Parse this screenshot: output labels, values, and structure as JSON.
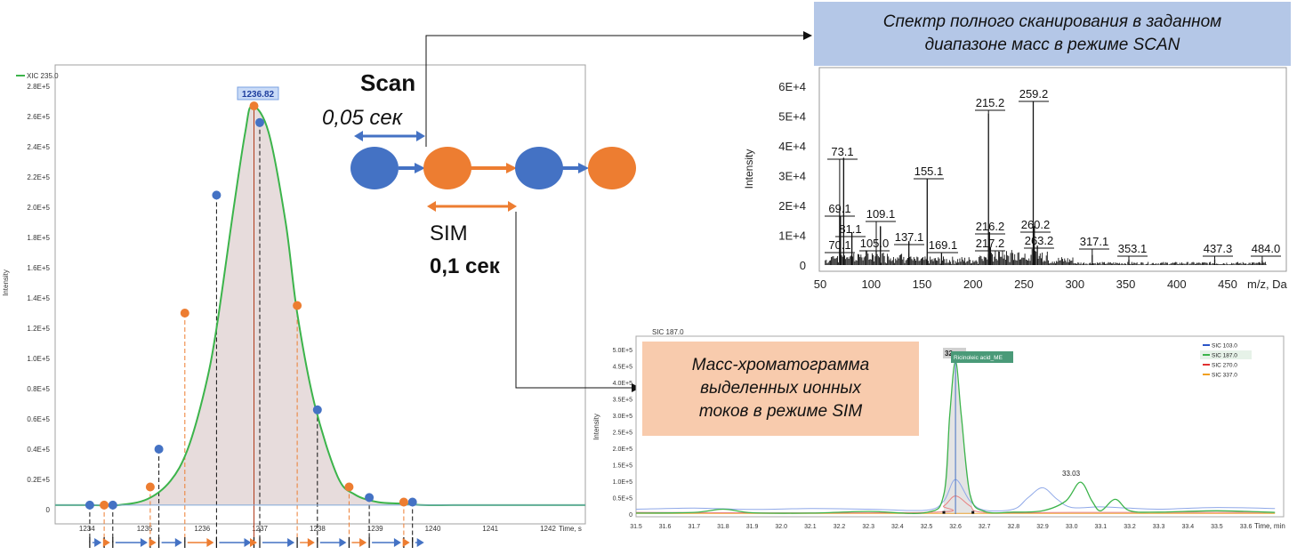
{
  "colors": {
    "blue": "#4472c4",
    "orange": "#ed7d31",
    "green": "#3cb44b",
    "peak_fill": "#e7dcdc"
  },
  "icons": [
    "scan-dot-icon",
    "sim-dot-icon",
    "arrow-right-icon"
  ],
  "left_plot": {
    "legend": "XIC 235.0",
    "peak_label": "1236.82",
    "ylabel": "Intensity",
    "xlabel": "Time, s",
    "yticks": [
      "0",
      "0.2E+5",
      "0.4E+5",
      "0.6E+5",
      "0.8E+5",
      "1.0E+5",
      "1.2E+5",
      "1.4E+5",
      "1.6E+5",
      "1.8E+5",
      "2.0E+5",
      "2.2E+5",
      "2.4E+5",
      "2.6E+5",
      "2.8E+5"
    ],
    "xticks": [
      "1234",
      "1235",
      "1236",
      "1237",
      "1238",
      "1239",
      "1240",
      "1241",
      "1242"
    ]
  },
  "scheme": {
    "scan_title": "Scan",
    "scan_time": "0,05 сек",
    "sim_title": "SIM",
    "sim_time": "0,1 сек"
  },
  "scan_spectrum": {
    "caption_line1": "Спектр полного сканирования в заданном",
    "caption_line2": "диапазоне масс в режиме SCAN",
    "ylabel": "Intensity",
    "xlabel": "m/z, Da",
    "yticks": [
      "0",
      "1E+4",
      "2E+4",
      "3E+4",
      "4E+4",
      "5E+4",
      "6E+4"
    ],
    "xticks": [
      "50",
      "100",
      "150",
      "200",
      "250",
      "300",
      "350",
      "400",
      "450"
    ],
    "peak_labels": [
      "73.1",
      "69.1",
      "81.1",
      "70.1",
      "109.1",
      "105.0",
      "137.1",
      "155.1",
      "169.1",
      "215.2",
      "216.2",
      "217.2",
      "259.2",
      "260.2",
      "263.2",
      "317.1",
      "353.1",
      "437.3",
      "484.0"
    ]
  },
  "sim_chromatogram": {
    "caption_line1": "Масс-хроматограмма",
    "caption_line2": "выделенных ионных",
    "caption_line3": "токов в режиме SIM",
    "title": "SIC 187.0",
    "ylabel": "Intensity",
    "xlabel": "Time, min",
    "peak_marker": "32",
    "compound_label": "Ricinoleic acid_ME",
    "peak2_label": "33.03",
    "legend": [
      {
        "name": "SIC 103.0",
        "color": "#2b55c8"
      },
      {
        "name": "SIC 187.0",
        "color": "#3cb44b"
      },
      {
        "name": "SIC 270.0",
        "color": "#e03030"
      },
      {
        "name": "SIC 337.0",
        "color": "#f0a020"
      }
    ],
    "yticks": [
      "0",
      "0.5E+5",
      "1.0E+5",
      "1.5E+5",
      "2.0E+5",
      "2.5E+5",
      "3.0E+5",
      "3.5E+5",
      "4.0E+5",
      "4.5E+5",
      "5.0E+5"
    ],
    "xticks": [
      "31.5",
      "31.6",
      "31.7",
      "31.8",
      "31.9",
      "32.0",
      "32.1",
      "32.2",
      "32.3",
      "32.4",
      "32.5",
      "32.6",
      "32.7",
      "32.8",
      "32.9",
      "33.0",
      "33.1",
      "33.2",
      "33.3",
      "33.4",
      "33.5",
      "33.6"
    ]
  },
  "chart_data": [
    {
      "type": "scatter",
      "xlabel": "Time, s",
      "ylabel": "Intensity",
      "xlim": [
        1233.4,
        1242.6
      ],
      "ylim": [
        0,
        280000
      ],
      "series": [
        {
          "name": "XIC 235.0",
          "x": [
            1233.4,
            1234.0,
            1234.5,
            1235.0,
            1235.4,
            1235.7,
            1236.0,
            1236.2,
            1236.5,
            1236.7,
            1236.82,
            1237.1,
            1237.4,
            1237.6,
            1237.9,
            1238.3,
            1238.6,
            1239.0,
            1239.4,
            1239.8,
            1240.5,
            1242.6
          ],
          "y": [
            3000,
            3000,
            3000,
            7000,
            19000,
            40000,
            80000,
            120000,
            200000,
            250000,
            267000,
            250000,
            190000,
            130000,
            70000,
            22000,
            10000,
            5000,
            4000,
            3000,
            3000,
            3000
          ]
        }
      ],
      "scan_points": {
        "x": [
          1234.0,
          1234.4,
          1235.2,
          1236.2,
          1236.95,
          1237.95,
          1238.85,
          1239.6
        ],
        "y": [
          3000,
          3000,
          40000,
          208000,
          256000,
          66000,
          8000,
          5000
        ]
      },
      "sim_points": {
        "x": [
          1234.25,
          1235.05,
          1235.65,
          1236.85,
          1237.6,
          1238.5,
          1239.45
        ],
        "y": [
          3000,
          15000,
          130000,
          267000,
          135000,
          15000,
          5000
        ]
      }
    },
    {
      "type": "bar",
      "xlabel": "m/z, Da",
      "ylabel": "Intensity",
      "xlim": [
        50,
        490
      ],
      "ylim": [
        0,
        65000
      ],
      "peaks": [
        {
          "mz": 69.1,
          "value": 18000
        },
        {
          "mz": 70.1,
          "value": 4000
        },
        {
          "mz": 73.1,
          "value": 36000
        },
        {
          "mz": 81.1,
          "value": 11000
        },
        {
          "mz": 105.0,
          "value": 5000
        },
        {
          "mz": 109.1,
          "value": 13000
        },
        {
          "mz": 137.1,
          "value": 8000
        },
        {
          "mz": 155.1,
          "value": 29000
        },
        {
          "mz": 169.1,
          "value": 4000
        },
        {
          "mz": 215.2,
          "value": 51000
        },
        {
          "mz": 216.2,
          "value": 11000
        },
        {
          "mz": 217.2,
          "value": 6000
        },
        {
          "mz": 259.2,
          "value": 55000
        },
        {
          "mz": 260.2,
          "value": 13000
        },
        {
          "mz": 263.2,
          "value": 6500
        },
        {
          "mz": 317.1,
          "value": 3500
        },
        {
          "mz": 353.1,
          "value": 2000
        },
        {
          "mz": 437.3,
          "value": 2000
        },
        {
          "mz": 484.0,
          "value": 1500
        }
      ]
    },
    {
      "type": "line",
      "xlabel": "Time, min",
      "ylabel": "Intensity",
      "xlim": [
        31.5,
        33.73
      ],
      "ylim": [
        0,
        500000
      ],
      "series": [
        {
          "name": "SIC 103.0",
          "x": [
            31.5,
            31.7,
            31.9,
            32.1,
            32.3,
            32.5,
            32.56,
            32.6,
            32.65,
            32.7,
            32.8,
            32.85,
            32.9,
            32.95,
            33.0,
            33.1,
            33.2,
            33.3,
            33.5,
            33.7
          ],
          "y": [
            15000,
            18000,
            14000,
            17000,
            15000,
            12000,
            40000,
            105000,
            40000,
            12000,
            15000,
            50000,
            80000,
            45000,
            20000,
            22000,
            18000,
            15000,
            20000,
            17000
          ]
        },
        {
          "name": "SIC 187.0",
          "x": [
            31.5,
            31.7,
            31.8,
            31.9,
            32.1,
            32.3,
            32.5,
            32.56,
            32.58,
            32.6,
            32.62,
            32.65,
            32.7,
            32.8,
            32.9,
            32.98,
            33.03,
            33.07,
            33.1,
            33.15,
            33.2,
            33.3,
            33.5,
            33.7
          ],
          "y": [
            3000,
            5000,
            15000,
            4000,
            3000,
            8000,
            5000,
            60000,
            300000,
            465000,
            300000,
            60000,
            8000,
            6000,
            10000,
            40000,
            97000,
            40000,
            10000,
            45000,
            10000,
            6000,
            10000,
            5000
          ]
        },
        {
          "name": "SIC 270.0",
          "x": [
            31.5,
            32.5,
            32.56,
            32.6,
            32.65,
            32.7,
            33.0,
            33.7
          ],
          "y": [
            5000,
            5000,
            25000,
            55000,
            25000,
            5000,
            5000,
            5000
          ]
        },
        {
          "name": "SIC 337.0",
          "x": [
            31.5,
            33.7
          ],
          "y": [
            2000,
            2000
          ]
        }
      ]
    }
  ]
}
